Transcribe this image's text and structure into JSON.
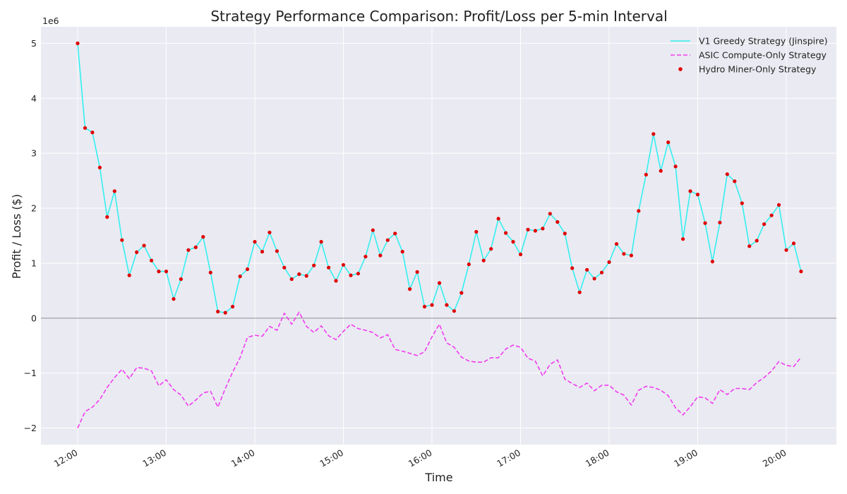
{
  "chart_data": {
    "type": "line",
    "title": "Strategy Performance Comparison: Profit/Loss per 5-min Interval",
    "xlabel": "Time",
    "ylabel": "Profit / Loss ($)",
    "y_scale_label": "1e6",
    "ylim": [
      -2300000,
      5300000
    ],
    "y_ticks": [
      -2000000,
      -1000000,
      0,
      1000000,
      2000000,
      3000000,
      4000000,
      5000000
    ],
    "y_tick_labels": [
      "−2",
      "−1",
      "0",
      "1",
      "2",
      "3",
      "4",
      "5"
    ],
    "x_start": "12:00",
    "x_ticks": [
      "12:00",
      "13:00",
      "14:00",
      "15:00",
      "16:00",
      "17:00",
      "18:00",
      "19:00",
      "20:00"
    ],
    "x_labels": [
      "12:00",
      "12:05",
      "12:10",
      "12:15",
      "12:20",
      "12:25",
      "12:30",
      "12:35",
      "12:40",
      "12:45",
      "12:50",
      "12:55",
      "13:00",
      "13:05",
      "13:10",
      "13:15",
      "13:20",
      "13:25",
      "13:30",
      "13:35",
      "13:40",
      "13:45",
      "13:50",
      "13:55",
      "14:00",
      "14:05",
      "14:10",
      "14:15",
      "14:20",
      "14:25",
      "14:30",
      "14:35",
      "14:40",
      "14:45",
      "14:50",
      "14:55",
      "15:00",
      "15:05",
      "15:10",
      "15:15",
      "15:20",
      "15:25",
      "15:30",
      "15:35",
      "15:40",
      "15:45",
      "15:50",
      "15:55",
      "16:00",
      "16:05",
      "16:10",
      "16:15",
      "16:20",
      "16:25",
      "16:30",
      "16:35",
      "16:40",
      "16:45",
      "16:50",
      "16:55",
      "17:00",
      "17:05",
      "17:10",
      "17:15",
      "17:20",
      "17:25",
      "17:30",
      "17:35",
      "17:40",
      "17:45",
      "17:50",
      "17:55",
      "18:00",
      "18:05",
      "18:10",
      "18:15",
      "18:20",
      "18:25",
      "18:30",
      "18:35",
      "18:40",
      "18:45",
      "18:50",
      "18:55",
      "19:00",
      "19:05",
      "19:10",
      "19:15",
      "19:20",
      "19:25",
      "19:30",
      "19:35",
      "19:40",
      "19:45",
      "19:50",
      "19:55",
      "20:00",
      "20:05",
      "20:10"
    ],
    "grid": true,
    "reference_line_y": 0,
    "legend_position": "top-right",
    "colors": {
      "v1": "#33f0f0",
      "asic": "#f03cf0",
      "hydro": "#e00000",
      "zero_line": "#8c8c8c",
      "plot_bg": "#eaeaf2",
      "grid": "#ffffff"
    },
    "series": [
      {
        "name": "V1 Greedy Strategy (Jinspire)",
        "style": "solid",
        "values": [
          5000000,
          3460000,
          3380000,
          2740000,
          1840000,
          2310000,
          1420000,
          780000,
          1200000,
          1320000,
          1050000,
          850000,
          850000,
          350000,
          710000,
          1240000,
          1290000,
          1480000,
          830000,
          120000,
          100000,
          210000,
          760000,
          890000,
          1390000,
          1210000,
          1560000,
          1220000,
          920000,
          710000,
          800000,
          770000,
          960000,
          1390000,
          920000,
          680000,
          970000,
          780000,
          810000,
          1120000,
          1600000,
          1140000,
          1420000,
          1540000,
          1210000,
          530000,
          840000,
          210000,
          240000,
          640000,
          240000,
          130000,
          460000,
          980000,
          1570000,
          1050000,
          1260000,
          1810000,
          1550000,
          1390000,
          1160000,
          1610000,
          1590000,
          1630000,
          1900000,
          1750000,
          1540000,
          910000,
          470000,
          880000,
          720000,
          830000,
          1020000,
          1350000,
          1170000,
          1140000,
          1950000,
          2610000,
          3350000,
          2680000,
          3200000,
          2760000,
          1440000,
          2310000,
          2250000,
          1730000,
          1030000,
          1740000,
          2620000,
          2490000,
          2090000,
          1310000,
          1410000,
          1710000,
          1870000,
          2060000,
          1240000,
          1360000,
          850000
        ]
      },
      {
        "name": "ASIC Compute-Only Strategy",
        "style": "dashed",
        "values": [
          -2000000,
          -1700000,
          -1620000,
          -1480000,
          -1260000,
          -1080000,
          -930000,
          -1100000,
          -900000,
          -910000,
          -960000,
          -1230000,
          -1120000,
          -1300000,
          -1400000,
          -1600000,
          -1490000,
          -1360000,
          -1330000,
          -1620000,
          -1280000,
          -980000,
          -720000,
          -350000,
          -310000,
          -330000,
          -150000,
          -220000,
          90000,
          -110000,
          110000,
          -150000,
          -260000,
          -140000,
          -320000,
          -390000,
          -240000,
          -110000,
          -190000,
          -220000,
          -260000,
          -360000,
          -300000,
          -570000,
          -600000,
          -640000,
          -680000,
          -610000,
          -340000,
          -110000,
          -450000,
          -530000,
          -710000,
          -780000,
          -800000,
          -800000,
          -720000,
          -720000,
          -560000,
          -490000,
          -530000,
          -730000,
          -780000,
          -1050000,
          -840000,
          -760000,
          -1110000,
          -1190000,
          -1260000,
          -1180000,
          -1320000,
          -1220000,
          -1220000,
          -1340000,
          -1400000,
          -1580000,
          -1310000,
          -1240000,
          -1260000,
          -1310000,
          -1410000,
          -1630000,
          -1760000,
          -1610000,
          -1430000,
          -1450000,
          -1550000,
          -1300000,
          -1390000,
          -1280000,
          -1280000,
          -1300000,
          -1170000,
          -1080000,
          -960000,
          -790000,
          -860000,
          -880000,
          -710000
        ]
      },
      {
        "name": "Hydro Miner-Only Strategy",
        "style": "points",
        "values": [
          5000000,
          3460000,
          3380000,
          2740000,
          1840000,
          2310000,
          1420000,
          780000,
          1200000,
          1320000,
          1050000,
          850000,
          850000,
          350000,
          710000,
          1240000,
          1290000,
          1480000,
          830000,
          120000,
          100000,
          210000,
          760000,
          890000,
          1390000,
          1210000,
          1560000,
          1220000,
          920000,
          710000,
          800000,
          770000,
          960000,
          1390000,
          920000,
          680000,
          970000,
          780000,
          810000,
          1120000,
          1600000,
          1140000,
          1420000,
          1540000,
          1210000,
          530000,
          840000,
          210000,
          240000,
          640000,
          240000,
          130000,
          460000,
          980000,
          1570000,
          1050000,
          1260000,
          1810000,
          1550000,
          1390000,
          1160000,
          1610000,
          1590000,
          1630000,
          1900000,
          1750000,
          1540000,
          910000,
          470000,
          880000,
          720000,
          830000,
          1020000,
          1350000,
          1170000,
          1140000,
          1950000,
          2610000,
          3350000,
          2680000,
          3200000,
          2760000,
          1440000,
          2310000,
          2250000,
          1730000,
          1030000,
          1740000,
          2620000,
          2490000,
          2090000,
          1310000,
          1410000,
          1710000,
          1870000,
          2060000,
          1240000,
          1360000,
          850000
        ]
      }
    ]
  }
}
